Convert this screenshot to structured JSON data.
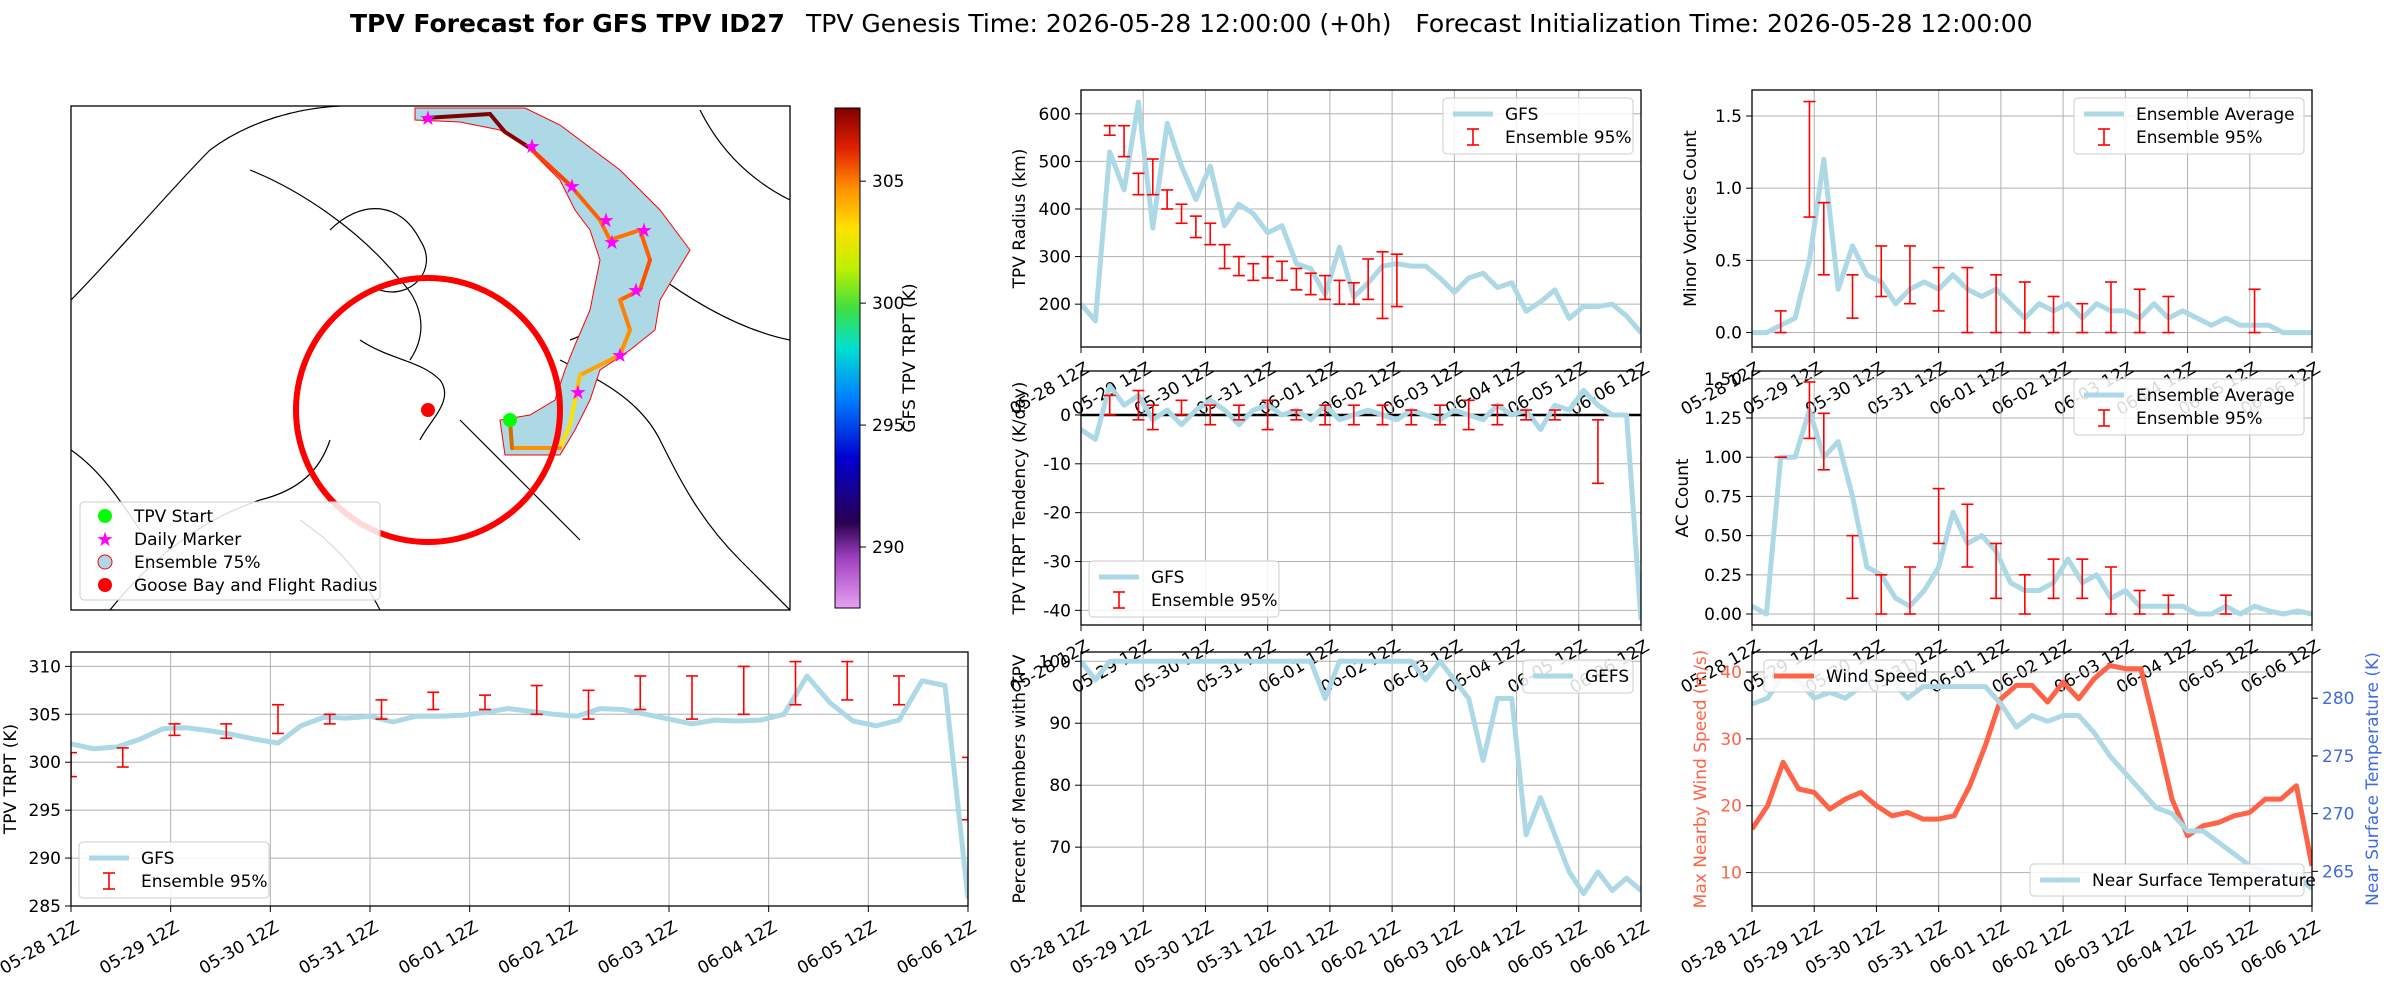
{
  "header": {
    "title_bold": "TPV Forecast for GFS TPV ID27",
    "title_rest": "TPV Genesis Time: 2026-05-28 12:00:00 (+0h)   Forecast Initialization Time: 2026-05-28 12:00:00"
  },
  "colors": {
    "gfs_line": "#add8e6",
    "errorbar": "#ff0000",
    "wind": "#ff6347",
    "temp_label": "#4169e1",
    "track_ensemble_fill": "#add8e6",
    "flight_radius": "#ff0000",
    "start_marker": "#00ff00",
    "daily_marker": "#ff00ff"
  },
  "x_ticks": [
    "05-28 12Z",
    "05-29 12Z",
    "05-30 12Z",
    "05-31 12Z",
    "06-01 12Z",
    "06-02 12Z",
    "06-03 12Z",
    "06-04 12Z",
    "06-05 12Z",
    "06-06 12Z"
  ],
  "map": {
    "colorbar_label": "GFS TPV TRPT (K)",
    "colorbar_ticks": [
      "290",
      "295",
      "300",
      "305"
    ],
    "colorbar_range": [
      287.5,
      308.0
    ],
    "legend": [
      "TPV Start",
      "Daily Marker",
      "Ensemble 75%",
      "Goose Bay and Flight Radius"
    ],
    "track_icons": [
      "start-icon",
      "daily-marker-icon",
      "ensemble-area-icon",
      "goose-bay-icon"
    ]
  },
  "chart_data": [
    {
      "id": "radius",
      "type": "line",
      "ylabel": "TPV Radius (km)",
      "ylim": [
        110,
        650
      ],
      "yticks": [
        "200",
        "300",
        "400",
        "500",
        "600"
      ],
      "legend_loc": "upper right",
      "legend": [
        "GFS",
        "Ensemble 95%"
      ],
      "x_range": [
        0,
        9
      ],
      "series": [
        {
          "name": "GFS",
          "x_step": 0.25,
          "values": [
            200,
            165,
            520,
            440,
            625,
            360,
            580,
            490,
            420,
            490,
            365,
            410,
            390,
            350,
            365,
            285,
            275,
            220,
            320,
            215,
            245,
            280,
            285,
            280,
            280,
            255,
            225,
            255,
            265,
            235,
            245,
            185,
            205,
            230,
            170,
            195,
            195,
            200,
            175,
            140
          ]
        }
      ],
      "errorbars": [
        [
          0.5,
          555,
          575
        ],
        [
          0.75,
          575,
          510
        ],
        [
          1.0,
          475,
          430
        ],
        [
          1.25,
          505,
          430
        ],
        [
          1.5,
          440,
          400
        ],
        [
          1.75,
          410,
          370
        ],
        [
          2.0,
          385,
          340
        ],
        [
          2.25,
          370,
          325
        ],
        [
          2.5,
          325,
          275
        ],
        [
          2.75,
          300,
          260
        ],
        [
          3.0,
          285,
          250
        ],
        [
          3.25,
          300,
          255
        ],
        [
          3.5,
          290,
          250
        ],
        [
          3.75,
          275,
          230
        ],
        [
          4.0,
          265,
          220
        ],
        [
          4.25,
          260,
          210
        ],
        [
          4.5,
          250,
          200
        ],
        [
          4.75,
          245,
          200
        ],
        [
          5.0,
          295,
          210
        ],
        [
          5.25,
          310,
          170
        ],
        [
          5.5,
          305,
          195
        ]
      ]
    },
    {
      "id": "minor_vortices",
      "type": "line",
      "ylabel": "Minor Vortices Count",
      "ylim": [
        -0.1,
        1.68
      ],
      "yticks": [
        "0.0",
        "0.5",
        "1.0",
        "1.5"
      ],
      "legend_loc": "upper right",
      "legend": [
        "Ensemble Average",
        "Ensemble 95%"
      ],
      "series": [
        {
          "name": "Ensemble Average",
          "x_step": 0.25,
          "values": [
            0,
            0,
            0.05,
            0.1,
            0.5,
            1.2,
            0.3,
            0.6,
            0.4,
            0.35,
            0.2,
            0.3,
            0.35,
            0.3,
            0.4,
            0.3,
            0.25,
            0.3,
            0.2,
            0.1,
            0.2,
            0.15,
            0.2,
            0.1,
            0.2,
            0.15,
            0.15,
            0.1,
            0.2,
            0.1,
            0.15,
            0.1,
            0.05,
            0.1,
            0.05,
            0.05,
            0.05,
            0,
            0,
            0
          ]
        }
      ],
      "errorbars": [
        [
          0.5,
          0.15,
          0
        ],
        [
          1.0,
          1.6,
          0.8
        ],
        [
          1.25,
          0.9,
          0.4
        ],
        [
          1.75,
          0.4,
          0.1
        ],
        [
          2.25,
          0.6,
          0.25
        ],
        [
          2.75,
          0.6,
          0.2
        ],
        [
          3.25,
          0.45,
          0.15
        ],
        [
          3.75,
          0.45,
          0
        ],
        [
          4.25,
          0.4,
          0
        ],
        [
          4.75,
          0.35,
          0
        ],
        [
          5.25,
          0.25,
          0
        ],
        [
          5.75,
          0.2,
          0
        ],
        [
          6.25,
          0.35,
          0
        ],
        [
          6.75,
          0.3,
          0
        ],
        [
          7.25,
          0.25,
          0
        ],
        [
          8.75,
          0.3,
          0
        ]
      ]
    },
    {
      "id": "trpt_tendency",
      "type": "line",
      "ylabel": "TPV TRPT Tendency (K/day)",
      "ylim": [
        -43,
        9
      ],
      "yticks": [
        "0",
        "-10",
        "-20",
        "-30",
        "-40"
      ],
      "legend_loc": "lower left",
      "legend": [
        "GFS",
        "Ensemble 95%"
      ],
      "series": [
        {
          "name": "GFS",
          "x_step": 0.25,
          "values": [
            -3,
            -5,
            6,
            2,
            4,
            -1,
            1,
            -2,
            1,
            3,
            1,
            -2,
            1,
            2,
            0,
            1,
            -1,
            2,
            -1,
            0,
            1,
            0,
            -1,
            1,
            0,
            -1,
            1,
            0,
            -1,
            2,
            0,
            1,
            -3,
            2,
            1,
            5,
            2,
            0,
            0,
            -42
          ]
        }
      ],
      "errorbars": [
        [
          0.5,
          4,
          0
        ],
        [
          1.0,
          5,
          -1
        ],
        [
          1.25,
          2,
          -3
        ],
        [
          1.75,
          3,
          0
        ],
        [
          2.25,
          2,
          -2
        ],
        [
          2.75,
          2,
          -1
        ],
        [
          3.25,
          3,
          -3
        ],
        [
          3.75,
          1,
          -1
        ],
        [
          4.25,
          2,
          -2
        ],
        [
          4.75,
          2,
          -2
        ],
        [
          5.25,
          2,
          -2
        ],
        [
          5.75,
          1,
          -2
        ],
        [
          6.25,
          2,
          -2
        ],
        [
          6.75,
          3,
          -3
        ],
        [
          7.25,
          2,
          -2
        ],
        [
          7.75,
          1,
          -1
        ],
        [
          8.25,
          1,
          -1
        ],
        [
          9.0,
          -1,
          -14
        ]
      ]
    },
    {
      "id": "ac_count",
      "type": "line",
      "ylabel": "AC Count",
      "ylim": [
        -0.07,
        1.55
      ],
      "yticks": [
        "0.00",
        "0.25",
        "0.50",
        "0.75",
        "1.00",
        "1.25",
        "1.50"
      ],
      "legend_loc": "upper right",
      "legend": [
        "Ensemble Average",
        "Ensemble 95%"
      ],
      "series": [
        {
          "name": "Ensemble Average",
          "x_step": 0.25,
          "values": [
            0.05,
            0,
            1,
            1,
            1.3,
            1,
            1.1,
            0.75,
            0.3,
            0.25,
            0.1,
            0.05,
            0.15,
            0.3,
            0.65,
            0.45,
            0.5,
            0.4,
            0.2,
            0.15,
            0.15,
            0.2,
            0.35,
            0.2,
            0.25,
            0.1,
            0.15,
            0.05,
            0.05,
            0.05,
            0.05,
            0,
            0,
            0.05,
            0,
            0.05,
            0.02,
            0,
            0.02,
            0
          ]
        }
      ],
      "errorbars": [
        [
          0.5,
          1.0,
          1.0
        ],
        [
          1.0,
          1.48,
          1.12
        ],
        [
          1.25,
          1.28,
          0.92
        ],
        [
          1.75,
          0.5,
          0.1
        ],
        [
          2.25,
          0.25,
          0
        ],
        [
          2.75,
          0.3,
          0
        ],
        [
          3.25,
          0.8,
          0.45
        ],
        [
          3.75,
          0.7,
          0.3
        ],
        [
          4.25,
          0.45,
          0.1
        ],
        [
          4.75,
          0.25,
          0
        ],
        [
          5.25,
          0.35,
          0.1
        ],
        [
          5.75,
          0.35,
          0.1
        ],
        [
          6.25,
          0.3,
          0
        ],
        [
          6.75,
          0.15,
          0
        ],
        [
          7.25,
          0.12,
          0
        ],
        [
          8.25,
          0.12,
          0
        ]
      ]
    },
    {
      "id": "trpt",
      "type": "line",
      "ylabel": "TPV TRPT (K)",
      "ylim": [
        285,
        311.5
      ],
      "yticks": [
        "285",
        "290",
        "295",
        "300",
        "305",
        "310"
      ],
      "legend_loc": "lower left",
      "legend": [
        "GFS",
        "Ensemble 95%"
      ],
      "series": [
        {
          "name": "GFS",
          "x_step": 0.25,
          "values": [
            301.9,
            301.4,
            301.6,
            302.4,
            303.5,
            303.6,
            303.3,
            302.9,
            302.4,
            302.0,
            303.8,
            304.7,
            304.6,
            304.8,
            304.2,
            304.8,
            304.8,
            304.9,
            305.2,
            305.6,
            305.3,
            305.0,
            304.8,
            305.6,
            305.5,
            305.0,
            304.5,
            304.0,
            304.4,
            304.3,
            304.4,
            305.0,
            309.0,
            306.2,
            304.3,
            303.8,
            304.4,
            308.5,
            308.0,
            285.8
          ]
        }
      ],
      "errorbars": [
        [
          0.0,
          301.0,
          298.5
        ],
        [
          0.75,
          301.5,
          299.5
        ],
        [
          1.5,
          304.0,
          302.8
        ],
        [
          2.25,
          304.0,
          302.5
        ],
        [
          3.0,
          306.0,
          303.0
        ],
        [
          3.75,
          305.0,
          304.0
        ],
        [
          4.5,
          306.5,
          304.5
        ],
        [
          5.25,
          307.3,
          305.5
        ],
        [
          6.0,
          307.0,
          305.5
        ],
        [
          6.75,
          308.0,
          305.0
        ],
        [
          7.5,
          307.5,
          304.5
        ],
        [
          8.25,
          309.0,
          305.5
        ],
        [
          9.0,
          309.0,
          304.5
        ],
        [
          9.75,
          310.0,
          305.0
        ],
        [
          10.5,
          310.5,
          306.0
        ],
        [
          11.25,
          310.5,
          306.5
        ],
        [
          12.0,
          309.0,
          306.0
        ],
        [
          13.0,
          300.5,
          294.0
        ]
      ],
      "x_scale": 13.0
    },
    {
      "id": "percent_members",
      "type": "line",
      "ylabel": "Percent of Members with TPV",
      "ylim": [
        60.5,
        101.5
      ],
      "yticks": [
        "70",
        "80",
        "90",
        "100"
      ],
      "legend_loc": "upper right",
      "legend": [
        "GEFS"
      ],
      "series": [
        {
          "name": "GEFS",
          "x_step": 0.25,
          "values": [
            100,
            97,
            100,
            100,
            100,
            100,
            100,
            100,
            100,
            100,
            100,
            100,
            100,
            100,
            100,
            100,
            100,
            94,
            100,
            100,
            100,
            100,
            100,
            100,
            97,
            100,
            97,
            94,
            84,
            94,
            94,
            72,
            78,
            72,
            66,
            62.5,
            66,
            63,
            65,
            63
          ]
        }
      ]
    },
    {
      "id": "wind_temp",
      "type": "line",
      "ylabel_left": "Max Nearby Wind Speed (m/s)",
      "ylabel_right": "Near Surface Temperature (K)",
      "ylim_left": [
        5,
        43
      ],
      "ylim_right": [
        262,
        284
      ],
      "yticks_left": [
        "10",
        "20",
        "30",
        "40"
      ],
      "yticks_right": [
        "265",
        "270",
        "275",
        "280"
      ],
      "legend": [
        "Wind Speed",
        "Near Surface Temperature"
      ],
      "series": [
        {
          "name": "Wind Speed",
          "axis": "left",
          "x_step": 0.25,
          "values": [
            16.5,
            20,
            26.5,
            22.5,
            22,
            19.5,
            21,
            22,
            20,
            18.5,
            19,
            18,
            18,
            18.5,
            23,
            29,
            36,
            38,
            38,
            35.5,
            38.5,
            36,
            39,
            41,
            40.5,
            40.5,
            31,
            21,
            15.5,
            17,
            17.5,
            18.5,
            19,
            21,
            21,
            23,
            11
          ]
        },
        {
          "name": "Near Surface Temperature",
          "axis": "right",
          "x_step": 0.25,
          "values": [
            279.5,
            280,
            282,
            281.5,
            280,
            280.5,
            280,
            281,
            282.5,
            281.5,
            280,
            281,
            281,
            281,
            281,
            281,
            279.5,
            277.5,
            278.5,
            278,
            278.5,
            278.5,
            277,
            275,
            273.5,
            272,
            270.5,
            270,
            268.5,
            268.5,
            267.5,
            266.5,
            265.5,
            265,
            264.8,
            264.6,
            263.5
          ]
        }
      ]
    }
  ]
}
